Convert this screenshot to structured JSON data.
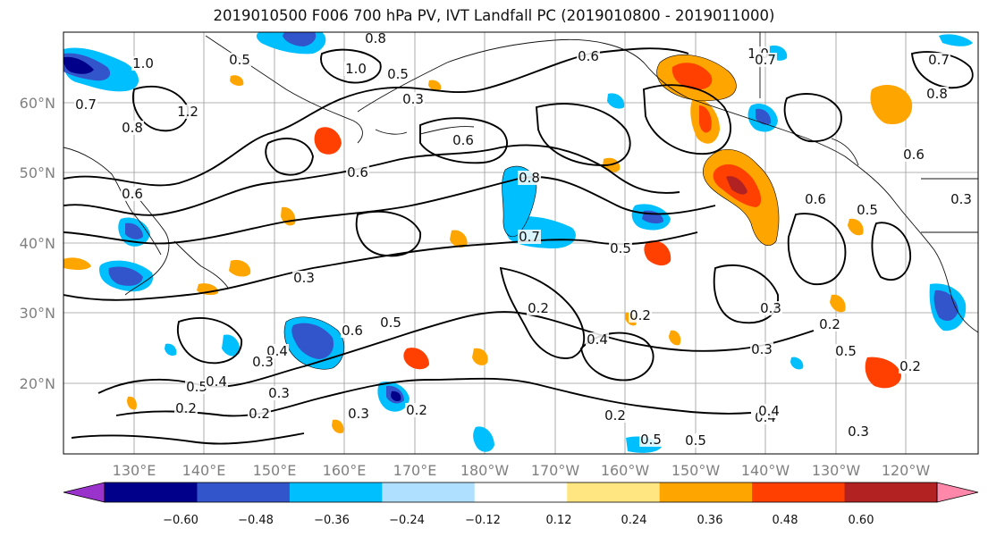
{
  "title": "2019010500 F006 700 hPa PV, IVT Landfall PC (2019010800 - 2019011000)",
  "map": {
    "lat_labels": [
      "60°N",
      "50°N",
      "40°N",
      "30°N",
      "20°N"
    ],
    "lon_labels": [
      "130°E",
      "140°E",
      "150°E",
      "160°E",
      "170°E",
      "180°W",
      "170°W",
      "160°W",
      "150°W",
      "140°W",
      "130°W",
      "120°W"
    ],
    "contour_labels": [
      "1.0",
      "0.7",
      "0.8",
      "1.2",
      "0.5",
      "0.6",
      "0.8",
      "0.5",
      "1.0",
      "0.3",
      "0.6",
      "0.6",
      "0.8",
      "0.7",
      "0.5",
      "0.3",
      "0.6",
      "0.5",
      "0.4",
      "0.3",
      "0.2",
      "0.5",
      "0.2",
      "0.3",
      "0.2",
      "0.4",
      "0.2",
      "0.3",
      "0.2",
      "0.4",
      "0.5",
      "0.5",
      "0.2",
      "0.3",
      "0.5",
      "0.4",
      "0.3",
      "0.4",
      "0.2",
      "0.3",
      "0.6",
      "0.5",
      "0.8",
      "0.6",
      "0.3",
      "0.7",
      "1.0",
      "0.7",
      "0.6",
      "0.2"
    ]
  },
  "colorbar": {
    "colors": [
      "#9933cc",
      "#00008b",
      "#3355cc",
      "#00bfff",
      "#b0e0ff",
      "#ffffff",
      "#ffe680",
      "#ffa500",
      "#ff4000",
      "#b22222",
      "#ff88aa"
    ],
    "tick_labels": [
      "−0.60",
      "−0.48",
      "−0.36",
      "−0.24",
      "−0.12",
      "0.12",
      "0.24",
      "0.36",
      "0.48",
      "0.60"
    ]
  }
}
